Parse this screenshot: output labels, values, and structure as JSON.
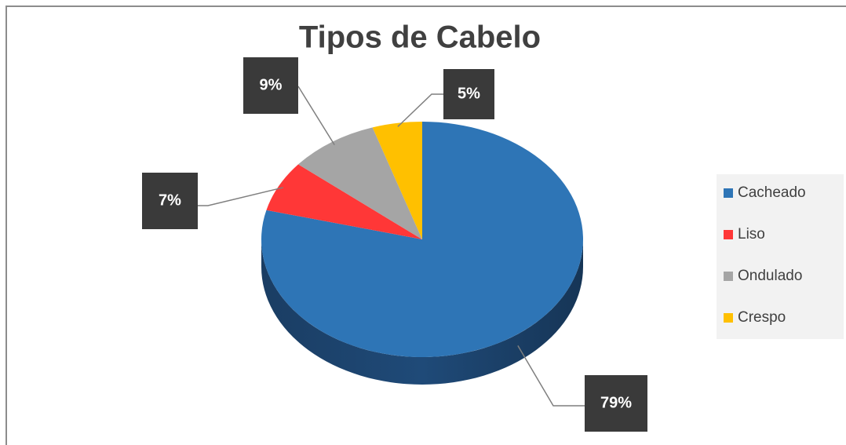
{
  "chart_data": {
    "type": "pie",
    "title": "Tipos de Cabelo",
    "categories": [
      "Cacheado",
      "Liso",
      "Ondulado",
      "Crespo"
    ],
    "values": [
      79,
      7,
      9,
      5
    ],
    "value_labels": [
      "79%",
      "7%",
      "9%",
      "5%"
    ],
    "colors": [
      "#2e75b6",
      "#ff3737",
      "#a5a5a5",
      "#ffc000"
    ],
    "legend": "right"
  }
}
